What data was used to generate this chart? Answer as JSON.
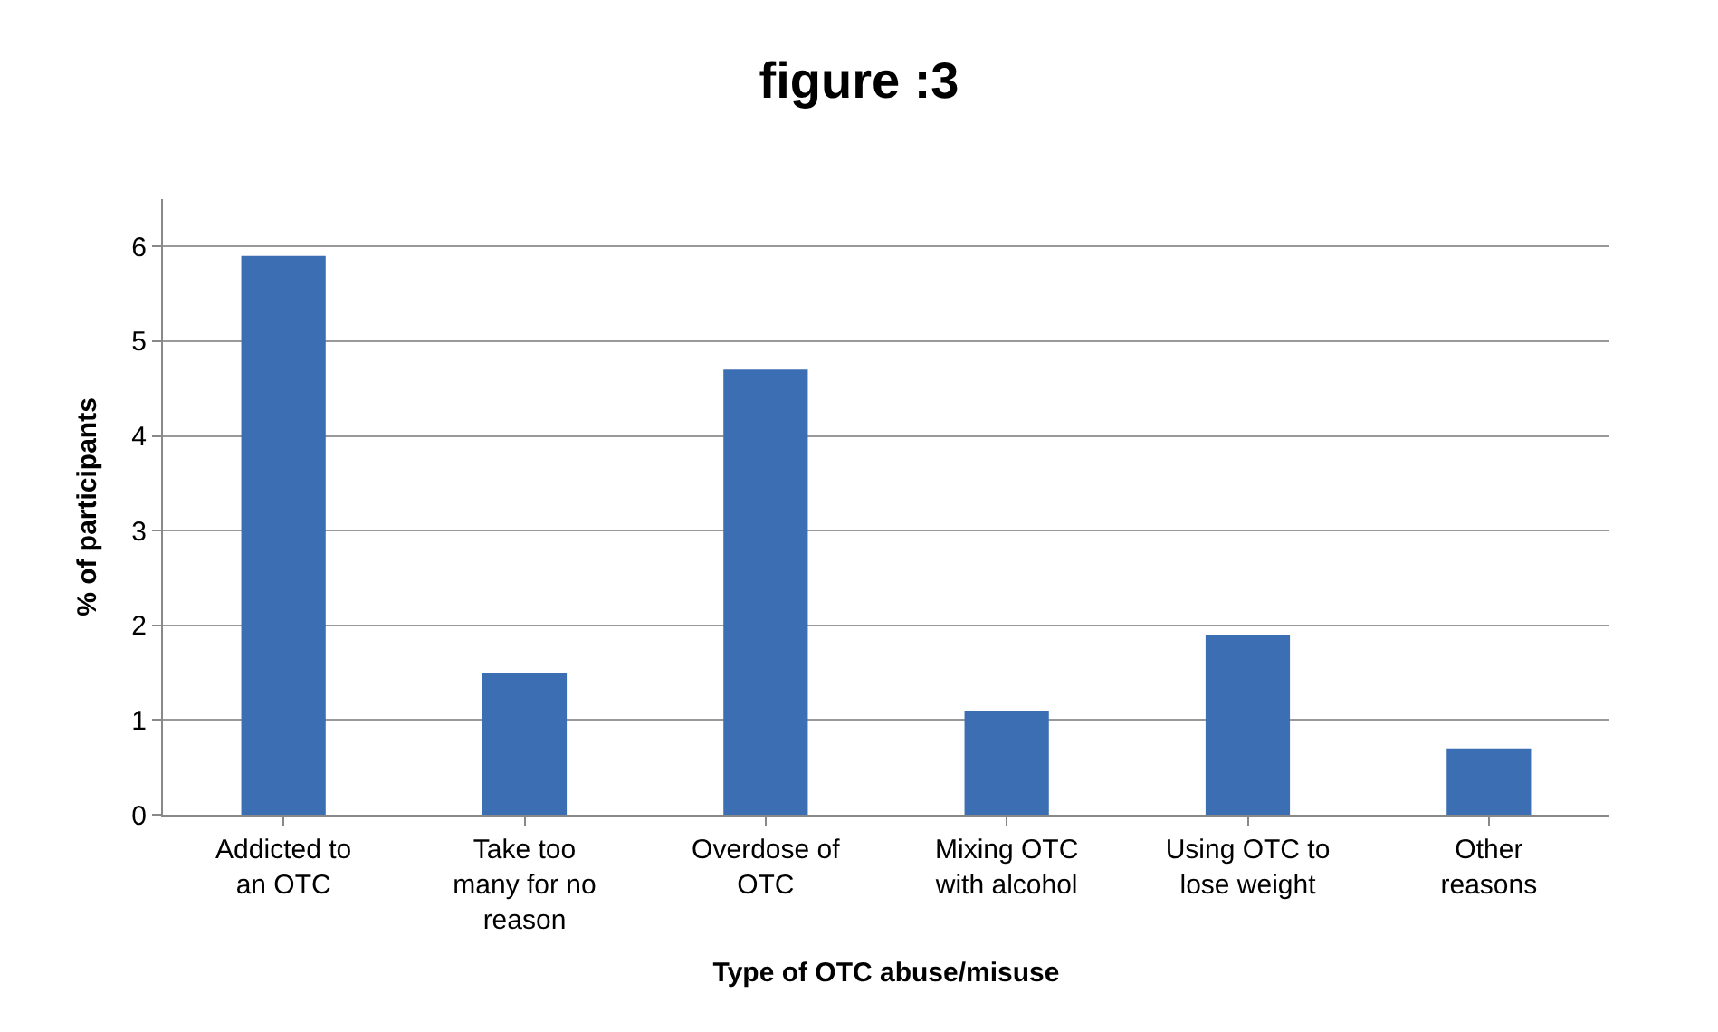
{
  "chart_data": {
    "type": "bar",
    "title": "figure :3",
    "xlabel": "Type of OTC abuse/misuse",
    "ylabel": "% of participants",
    "categories": [
      "Addicted to an OTC",
      "Take too many for no reason",
      "Overdose of OTC",
      "Mixing OTC with alcohol",
      "Using OTC to lose weight",
      "Other reasons"
    ],
    "series": [
      {
        "color": "#3c6eb4",
        "values": [
          5.9,
          1.5,
          4.7,
          1.1,
          1.9,
          0.7
        ]
      }
    ],
    "ylim": [
      0,
      6.5
    ],
    "yticks": [
      0,
      1,
      2,
      3,
      4,
      5,
      6
    ],
    "grid": "y",
    "legend": false
  }
}
